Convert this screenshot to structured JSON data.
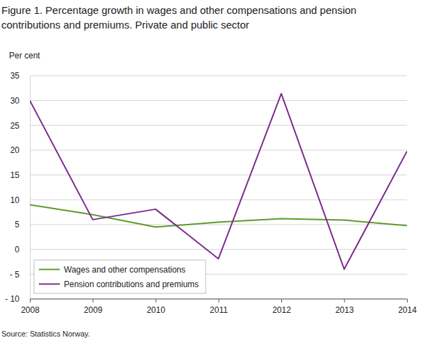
{
  "chart_data": {
    "type": "line",
    "title": "Figure 1. Percentage growth in wages and other compensations and pension contributions and premiums. Private and public sector",
    "y_label": "Per cent",
    "source": "Source: Statistics Norway.",
    "x": [
      2008,
      2009,
      2010,
      2011,
      2012,
      2013,
      2014
    ],
    "xlim": [
      2008,
      2014
    ],
    "xticks": [
      2008,
      2009,
      2010,
      2011,
      2012,
      2013,
      2014
    ],
    "ylim": [
      -10,
      35
    ],
    "yticks": [
      {
        "value": -10,
        "label": "- 10"
      },
      {
        "value": -5,
        "label": "- 5"
      },
      0,
      5,
      10,
      15,
      20,
      25,
      30,
      35
    ],
    "grid": true,
    "legend": "lower left",
    "series": [
      {
        "name": "Wages and other compensations",
        "color": "#5b9a2a",
        "values": [
          9.0,
          7.0,
          4.5,
          5.5,
          6.2,
          5.9,
          4.8
        ]
      },
      {
        "name": "Pension contributions and premiums",
        "color": "#7b2a8c",
        "values": [
          30.0,
          6.0,
          8.1,
          -1.9,
          31.4,
          -4.0,
          19.8
        ]
      }
    ]
  }
}
